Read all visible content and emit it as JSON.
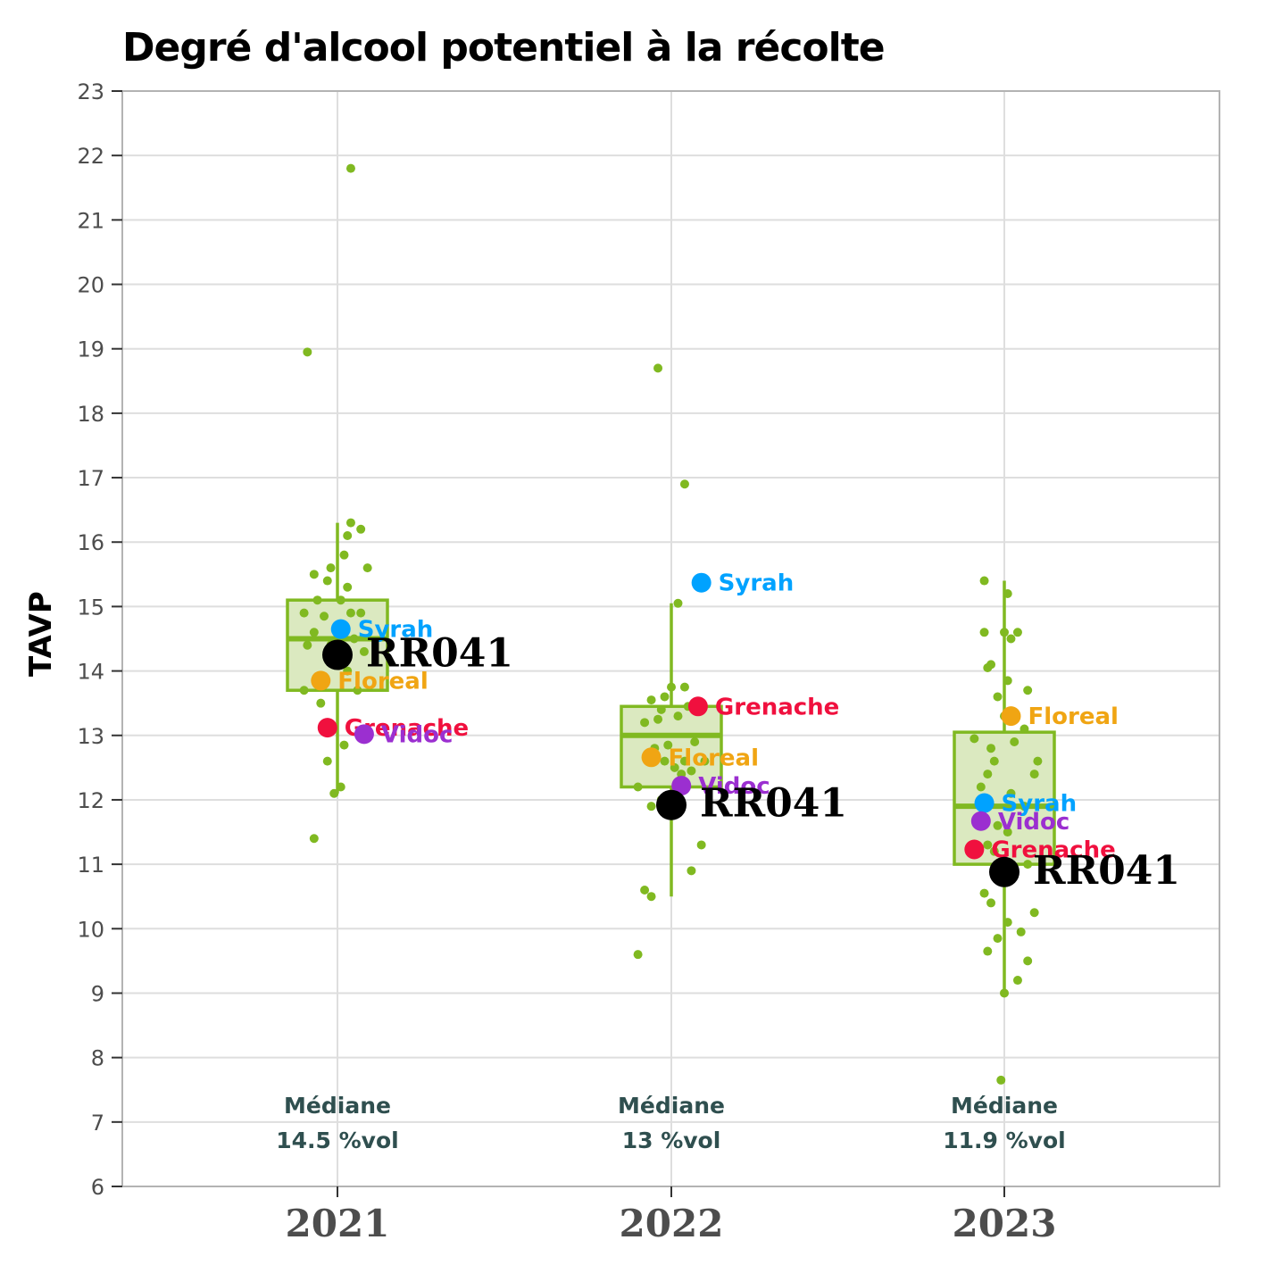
{
  "chart_data": {
    "type": "box",
    "title": "Degré d'alcool potentiel à la récolte",
    "xlabel": "",
    "ylabel": "TAVP",
    "ylim": [
      6,
      23
    ],
    "yticks": [
      6,
      7,
      8,
      9,
      10,
      11,
      12,
      13,
      14,
      15,
      16,
      17,
      18,
      19,
      20,
      21,
      22,
      23
    ],
    "categories": [
      "2021",
      "2022",
      "2023"
    ],
    "grid": true,
    "colors": {
      "box_fill": "#dbe9c0",
      "box_line": "#80b921",
      "jitter": "#80b921",
      "Syrah": "#00a2ff",
      "Floreal": "#f0a513",
      "Grenache": "#f0103e",
      "Vidoc": "#9b2fd0",
      "RR041": "#000000"
    },
    "boxes": [
      {
        "category": "2021",
        "whisker_low": 12.1,
        "q1": 13.7,
        "median": 14.5,
        "q3": 15.1,
        "whisker_high": 16.3
      },
      {
        "category": "2022",
        "whisker_low": 10.5,
        "q1": 12.2,
        "median": 13.0,
        "q3": 13.45,
        "whisker_high": 15.05
      },
      {
        "category": "2023",
        "whisker_low": 9.0,
        "q1": 11.0,
        "median": 11.9,
        "q3": 13.05,
        "whisker_high": 15.4
      }
    ],
    "jitter_points": [
      {
        "category": "2021",
        "points": [
          [
            -0.09,
            18.95
          ],
          [
            0.04,
            21.8
          ],
          [
            -0.07,
            11.4
          ],
          [
            -0.01,
            12.1
          ],
          [
            0.01,
            12.2
          ],
          [
            -0.03,
            12.6
          ],
          [
            0.02,
            12.85
          ],
          [
            -0.05,
            13.5
          ],
          [
            0.06,
            13.7
          ],
          [
            -0.1,
            13.7
          ],
          [
            0.03,
            14.0
          ],
          [
            0.08,
            14.3
          ],
          [
            -0.09,
            14.4
          ],
          [
            -0.02,
            14.4
          ],
          [
            0.05,
            14.5
          ],
          [
            -0.07,
            14.6
          ],
          [
            0.02,
            14.7
          ],
          [
            -0.04,
            14.85
          ],
          [
            0.04,
            14.9
          ],
          [
            -0.1,
            14.9
          ],
          [
            0.07,
            14.9
          ],
          [
            -0.06,
            15.1
          ],
          [
            0.01,
            15.1
          ],
          [
            0.03,
            15.3
          ],
          [
            -0.03,
            15.4
          ],
          [
            -0.07,
            15.5
          ],
          [
            -0.02,
            15.6
          ],
          [
            0.09,
            15.6
          ],
          [
            0.02,
            15.8
          ],
          [
            0.03,
            16.1
          ],
          [
            0.07,
            16.2
          ],
          [
            0.04,
            16.3
          ]
        ]
      },
      {
        "category": "2022",
        "points": [
          [
            -0.1,
            9.6
          ],
          [
            -0.08,
            10.6
          ],
          [
            -0.06,
            10.5
          ],
          [
            0.06,
            10.9
          ],
          [
            0.09,
            11.3
          ],
          [
            -0.06,
            11.9
          ],
          [
            -0.03,
            12.0
          ],
          [
            -0.1,
            12.2
          ],
          [
            0.03,
            12.4
          ],
          [
            0.06,
            12.45
          ],
          [
            0.01,
            12.5
          ],
          [
            -0.02,
            12.6
          ],
          [
            0.04,
            12.6
          ],
          [
            0.1,
            12.6
          ],
          [
            -0.05,
            12.8
          ],
          [
            -0.01,
            12.85
          ],
          [
            0.07,
            12.9
          ],
          [
            -0.08,
            13.2
          ],
          [
            -0.04,
            13.25
          ],
          [
            0.02,
            13.3
          ],
          [
            -0.03,
            13.4
          ],
          [
            0.05,
            13.45
          ],
          [
            -0.06,
            13.55
          ],
          [
            -0.02,
            13.6
          ],
          [
            0.0,
            13.75
          ],
          [
            0.04,
            13.75
          ],
          [
            0.02,
            15.05
          ],
          [
            0.04,
            16.9
          ],
          [
            -0.04,
            18.7
          ]
        ]
      },
      {
        "category": "2023",
        "points": [
          [
            -0.01,
            7.65
          ],
          [
            0.0,
            9.0
          ],
          [
            0.04,
            9.2
          ],
          [
            -0.05,
            9.65
          ],
          [
            0.07,
            9.5
          ],
          [
            -0.02,
            9.85
          ],
          [
            0.05,
            9.95
          ],
          [
            0.01,
            10.1
          ],
          [
            0.09,
            10.25
          ],
          [
            -0.04,
            10.4
          ],
          [
            -0.06,
            10.55
          ],
          [
            -0.03,
            11.2
          ],
          [
            0.01,
            11.5
          ],
          [
            0.07,
            11.0
          ],
          [
            -0.05,
            11.3
          ],
          [
            -0.02,
            11.6
          ],
          [
            0.06,
            11.9
          ],
          [
            -0.07,
            12.2
          ],
          [
            0.02,
            12.1
          ],
          [
            -0.05,
            12.4
          ],
          [
            0.09,
            12.4
          ],
          [
            0.1,
            12.6
          ],
          [
            -0.03,
            12.6
          ],
          [
            -0.04,
            12.8
          ],
          [
            0.03,
            12.9
          ],
          [
            -0.09,
            12.95
          ],
          [
            0.06,
            13.1
          ],
          [
            0.0,
            13.3
          ],
          [
            -0.02,
            13.6
          ],
          [
            0.07,
            13.7
          ],
          [
            0.01,
            13.85
          ],
          [
            -0.05,
            14.05
          ],
          [
            -0.04,
            14.1
          ],
          [
            0.02,
            14.5
          ],
          [
            0.04,
            14.6
          ],
          [
            -0.06,
            14.6
          ],
          [
            0.0,
            14.6
          ],
          [
            0.01,
            15.2
          ],
          [
            -0.06,
            15.4
          ]
        ]
      }
    ],
    "highlight_points": [
      {
        "category": "2021",
        "name": "Syrah",
        "value": 14.65,
        "offset": 0.01,
        "size": "small"
      },
      {
        "category": "2021",
        "name": "RR041",
        "value": 14.25,
        "offset": 0.0,
        "size": "large"
      },
      {
        "category": "2021",
        "name": "Floreal",
        "value": 13.85,
        "offset": -0.05,
        "size": "small"
      },
      {
        "category": "2021",
        "name": "Grenache",
        "value": 13.12,
        "offset": -0.03,
        "size": "small"
      },
      {
        "category": "2021",
        "name": "Vidoc",
        "value": 13.02,
        "offset": 0.08,
        "size": "small"
      },
      {
        "category": "2022",
        "name": "Syrah",
        "value": 15.37,
        "offset": 0.09,
        "size": "small"
      },
      {
        "category": "2022",
        "name": "Grenache",
        "value": 13.45,
        "offset": 0.08,
        "size": "small"
      },
      {
        "category": "2022",
        "name": "Floreal",
        "value": 12.66,
        "offset": -0.06,
        "size": "small"
      },
      {
        "category": "2022",
        "name": "Vidoc",
        "value": 12.22,
        "offset": 0.03,
        "size": "small"
      },
      {
        "category": "2022",
        "name": "RR041",
        "value": 11.92,
        "offset": 0.0,
        "size": "large"
      },
      {
        "category": "2023",
        "name": "Floreal",
        "value": 13.3,
        "offset": 0.02,
        "size": "small"
      },
      {
        "category": "2023",
        "name": "Syrah",
        "value": 11.95,
        "offset": -0.06,
        "size": "small"
      },
      {
        "category": "2023",
        "name": "Vidoc",
        "value": 11.67,
        "offset": -0.07,
        "size": "small"
      },
      {
        "category": "2023",
        "name": "Grenache",
        "value": 11.23,
        "offset": -0.09,
        "size": "small"
      },
      {
        "category": "2023",
        "name": "RR041",
        "value": 10.88,
        "offset": 0.0,
        "size": "large"
      }
    ],
    "median_annotations": [
      {
        "category": "2021",
        "line1": "Médiane",
        "line2": "14.5 %vol"
      },
      {
        "category": "2022",
        "line1": "Médiane",
        "line2": "13 %vol"
      },
      {
        "category": "2023",
        "line1": "Médiane",
        "line2": "11.9 %vol"
      }
    ]
  }
}
